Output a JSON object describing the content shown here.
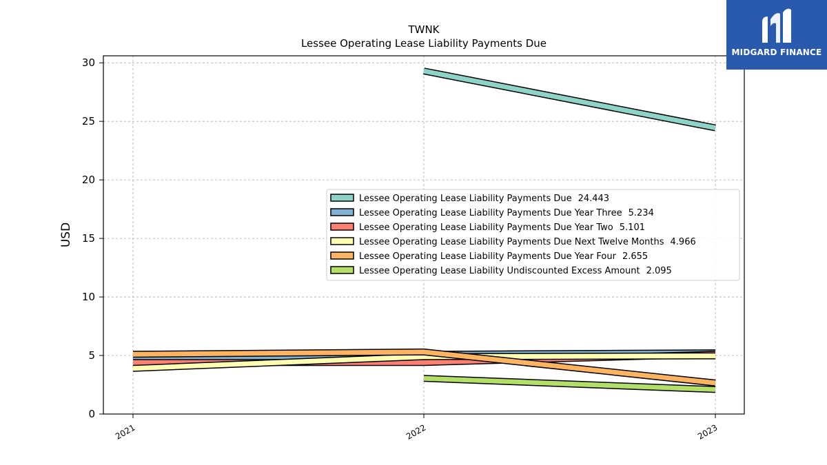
{
  "logo": {
    "text": "MIDGARD FINANCE"
  },
  "chart_data": {
    "type": "line",
    "title": "TWNK",
    "subtitle": "Lessee Operating Lease Liability Payments Due",
    "ylabel": "USD",
    "xlabel": "",
    "ylim": [
      0,
      30.6
    ],
    "yticks": [
      0,
      5,
      10,
      15,
      20,
      25,
      30
    ],
    "categories": [
      "2021",
      "2022",
      "2023"
    ],
    "grid": true,
    "legend_position": "center-right",
    "series": [
      {
        "name": "Lessee Operating Lease Liability Payments Due",
        "legend_value": "24.443",
        "color": "#8dd3c7",
        "values": [
          null,
          29.3,
          24.443
        ]
      },
      {
        "name": "Lessee Operating Lease Liability Payments Due Year Three",
        "legend_value": "5.234",
        "color": "#80b1d3",
        "values": [
          4.7,
          5.1,
          5.234
        ]
      },
      {
        "name": "Lessee Operating Lease Liability Payments Due Year Two",
        "legend_value": "5.101",
        "color": "#fb8072",
        "values": [
          4.4,
          4.4,
          5.101
        ]
      },
      {
        "name": "Lessee Operating Lease Liability Payments Due Next Twelve Months",
        "legend_value": "4.966",
        "color": "#ffffb3",
        "values": [
          3.9,
          4.9,
          4.966
        ]
      },
      {
        "name": "Lessee Operating Lease Liability Payments Due Year Four",
        "legend_value": "2.655",
        "color": "#fdb462",
        "values": [
          5.1,
          5.3,
          2.655
        ]
      },
      {
        "name": "Lessee Operating Lease Liability Undiscounted Excess Amount",
        "legend_value": "2.095",
        "color": "#b3de69",
        "values": [
          null,
          3.05,
          2.095
        ]
      }
    ]
  }
}
